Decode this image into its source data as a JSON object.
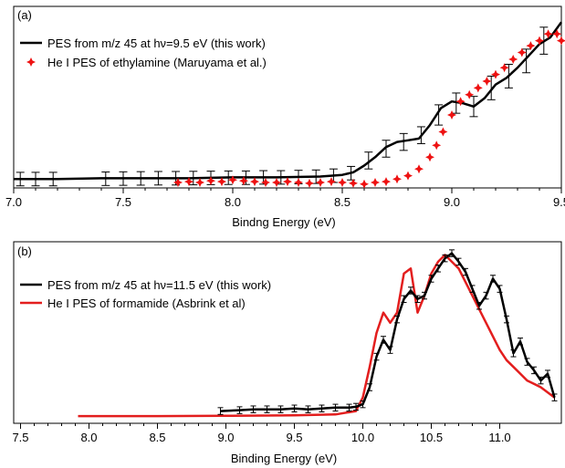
{
  "chart_data": [
    {
      "type": "line",
      "panel_label": "(a)",
      "xlabel": "Bindng Energy (eV)",
      "ylabel": "",
      "xlim": [
        7.0,
        9.5
      ],
      "ylim": [
        0,
        1
      ],
      "y_ticks_shown": false,
      "grid": false,
      "legend_position": "top-left",
      "x_ticks": [
        {
          "value": 7.0,
          "label": "7.0"
        },
        {
          "value": 7.5,
          "label": "7.5"
        },
        {
          "value": 8.0,
          "label": "8.0"
        },
        {
          "value": 8.5,
          "label": "8.5"
        },
        {
          "value": 9.0,
          "label": "9.0"
        },
        {
          "value": 9.5,
          "label": "9.5"
        }
      ],
      "series": [
        {
          "name": "PES from m/z 45 at hν=9.5 eV (this work)",
          "color": "#000000",
          "style": "line",
          "x": [
            7.0,
            7.2,
            7.4,
            7.6,
            7.8,
            8.0,
            8.2,
            8.4,
            8.5,
            8.55,
            8.6,
            8.65,
            8.7,
            8.75,
            8.8,
            8.85,
            8.9,
            8.95,
            9.0,
            9.05,
            9.1,
            9.15,
            9.2,
            9.25,
            9.3,
            9.35,
            9.4,
            9.45,
            9.5
          ],
          "y": [
            0.02,
            0.02,
            0.025,
            0.025,
            0.025,
            0.03,
            0.03,
            0.035,
            0.045,
            0.06,
            0.1,
            0.15,
            0.21,
            0.24,
            0.25,
            0.26,
            0.34,
            0.44,
            0.48,
            0.47,
            0.45,
            0.5,
            0.58,
            0.62,
            0.68,
            0.75,
            0.82,
            0.86,
            0.95
          ]
        },
        {
          "name": "PES from m/z 45 at hν=9.5 eV (this work)",
          "color": "#000000",
          "style": "errorbars",
          "x": [
            7.03,
            7.1,
            7.18,
            7.42,
            7.5,
            7.58,
            7.66,
            7.74,
            7.82,
            7.9,
            7.98,
            8.06,
            8.14,
            8.22,
            8.3,
            8.38,
            8.46,
            8.54,
            8.62,
            8.7,
            8.78,
            8.86,
            8.94,
            9.02,
            9.1,
            9.18,
            9.26,
            9.34,
            9.42
          ],
          "y": [
            0.02,
            0.02,
            0.02,
            0.022,
            0.023,
            0.024,
            0.025,
            0.025,
            0.026,
            0.027,
            0.028,
            0.028,
            0.03,
            0.03,
            0.032,
            0.034,
            0.04,
            0.055,
            0.13,
            0.2,
            0.24,
            0.28,
            0.4,
            0.47,
            0.45,
            0.56,
            0.63,
            0.72,
            0.84
          ],
          "err": [
            0.04,
            0.04,
            0.04,
            0.04,
            0.04,
            0.04,
            0.04,
            0.04,
            0.04,
            0.04,
            0.04,
            0.04,
            0.04,
            0.04,
            0.04,
            0.04,
            0.04,
            0.04,
            0.05,
            0.05,
            0.05,
            0.05,
            0.06,
            0.06,
            0.06,
            0.07,
            0.07,
            0.07,
            0.08
          ]
        },
        {
          "name": "He I PES of ethylamine (Maruyama et al.)",
          "color": "#ee1111",
          "style": "markers",
          "x": [
            7.75,
            7.8,
            7.85,
            7.9,
            7.95,
            8.0,
            8.05,
            8.1,
            8.15,
            8.2,
            8.25,
            8.3,
            8.35,
            8.4,
            8.45,
            8.5,
            8.55,
            8.6,
            8.65,
            8.7,
            8.75,
            8.8,
            8.85,
            8.9,
            8.93,
            8.96,
            9.0,
            9.04,
            9.08,
            9.12,
            9.16,
            9.2,
            9.24,
            9.28,
            9.32,
            9.36,
            9.4,
            9.44,
            9.48,
            9.5
          ],
          "y": [
            0.0,
            0.005,
            0.0,
            0.01,
            0.005,
            0.015,
            0.01,
            0.005,
            0.0,
            0.0,
            0.005,
            0.0,
            -0.005,
            0.0,
            0.005,
            0.0,
            -0.005,
            -0.01,
            0.0,
            0.005,
            0.02,
            0.04,
            0.08,
            0.15,
            0.22,
            0.3,
            0.4,
            0.48,
            0.52,
            0.56,
            0.6,
            0.64,
            0.68,
            0.73,
            0.77,
            0.81,
            0.84,
            0.88,
            0.88,
            0.84
          ]
        }
      ]
    },
    {
      "type": "line",
      "panel_label": "(b)",
      "xlabel": "Binding Energy (eV)",
      "ylabel": "",
      "xlim": [
        7.45,
        11.45
      ],
      "ylim": [
        0,
        1
      ],
      "y_ticks_shown": false,
      "grid": false,
      "legend_position": "top-left",
      "x_ticks": [
        {
          "value": 7.5,
          "label": "7.5"
        },
        {
          "value": 8.0,
          "label": "8.0"
        },
        {
          "value": 8.5,
          "label": "8.5"
        },
        {
          "value": 9.0,
          "label": "9.0"
        },
        {
          "value": 9.5,
          "label": "9.5"
        },
        {
          "value": 10.0,
          "label": "10.0"
        },
        {
          "value": 10.5,
          "label": "10.5"
        },
        {
          "value": 11.0,
          "label": "11.0"
        }
      ],
      "series": [
        {
          "name": "He I PES of formamide (Asbrink et al)",
          "color": "#e31e1e",
          "style": "line",
          "x": [
            7.92,
            8.5,
            9.0,
            9.5,
            9.8,
            9.95,
            10.0,
            10.05,
            10.1,
            10.15,
            10.2,
            10.25,
            10.3,
            10.35,
            10.4,
            10.45,
            10.5,
            10.55,
            10.6,
            10.65,
            10.7,
            10.75,
            10.8,
            10.85,
            10.9,
            10.95,
            11.0,
            11.05,
            11.1,
            11.15,
            11.2,
            11.25,
            11.3,
            11.35,
            11.4
          ],
          "y": [
            0.01,
            0.01,
            0.012,
            0.015,
            0.02,
            0.04,
            0.12,
            0.3,
            0.5,
            0.62,
            0.56,
            0.62,
            0.85,
            0.88,
            0.62,
            0.72,
            0.85,
            0.92,
            0.96,
            0.92,
            0.88,
            0.8,
            0.72,
            0.64,
            0.56,
            0.48,
            0.4,
            0.34,
            0.3,
            0.26,
            0.22,
            0.2,
            0.18,
            0.15,
            0.12
          ]
        },
        {
          "name": "PES from m/z 45 at hν=11.5 eV (this work)",
          "color": "#000000",
          "style": "line-errorbars",
          "x": [
            8.96,
            9.1,
            9.2,
            9.3,
            9.4,
            9.5,
            9.6,
            9.7,
            9.8,
            9.9,
            9.95,
            10.0,
            10.05,
            10.1,
            10.15,
            10.2,
            10.25,
            10.3,
            10.35,
            10.4,
            10.45,
            10.5,
            10.55,
            10.6,
            10.65,
            10.7,
            10.75,
            10.8,
            10.85,
            10.9,
            10.95,
            11.0,
            11.05,
            11.1,
            11.15,
            11.2,
            11.25,
            11.3,
            11.35,
            11.4
          ],
          "y": [
            0.04,
            0.045,
            0.05,
            0.05,
            0.05,
            0.055,
            0.05,
            0.055,
            0.06,
            0.06,
            0.065,
            0.08,
            0.18,
            0.36,
            0.46,
            0.4,
            0.58,
            0.7,
            0.75,
            0.7,
            0.72,
            0.82,
            0.88,
            0.94,
            0.97,
            0.92,
            0.86,
            0.76,
            0.66,
            0.72,
            0.82,
            0.76,
            0.58,
            0.38,
            0.45,
            0.33,
            0.28,
            0.22,
            0.26,
            0.12
          ],
          "err": [
            0.02,
            0.02,
            0.02,
            0.02,
            0.02,
            0.02,
            0.02,
            0.02,
            0.02,
            0.02,
            0.02,
            0.02,
            0.02,
            0.02,
            0.02,
            0.02,
            0.02,
            0.02,
            0.02,
            0.02,
            0.02,
            0.02,
            0.02,
            0.02,
            0.02,
            0.02,
            0.02,
            0.02,
            0.02,
            0.02,
            0.02,
            0.02,
            0.02,
            0.02,
            0.02,
            0.02,
            0.02,
            0.02,
            0.02,
            0.02
          ]
        }
      ]
    }
  ]
}
